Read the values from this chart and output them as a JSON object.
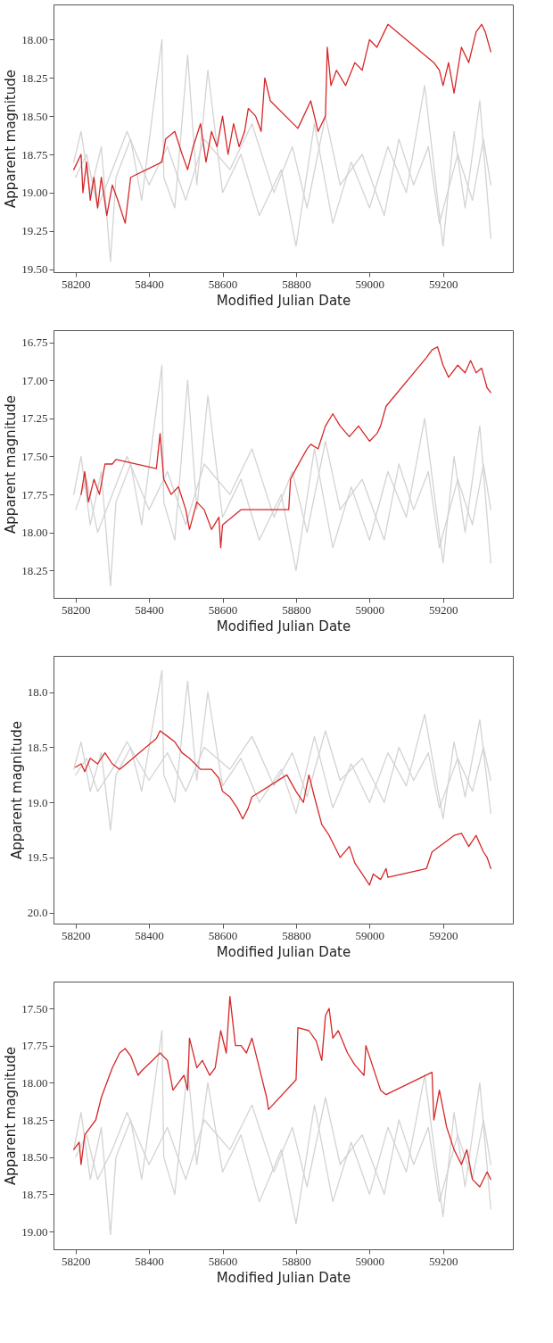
{
  "chart_data": [
    {
      "type": "line",
      "xlabel": "Modified Julian Date",
      "ylabel": "Apparent magnitude",
      "xlim": [
        58140,
        59390
      ],
      "ylim": [
        19.52,
        17.77
      ],
      "xticks": [
        58200,
        58400,
        58600,
        58800,
        59000,
        59200
      ],
      "yticks": [
        {
          "value": 18,
          "label": "18.00"
        },
        18.25,
        {
          "value": 18.5,
          "label": "18.50"
        },
        18.75,
        {
          "value": 19,
          "label": "19.00"
        },
        19.25,
        {
          "value": 19.5,
          "label": "19.50"
        }
      ],
      "grid": false,
      "legend": false,
      "series": [
        {
          "color": "#d3d3d3",
          "x": [
            58195,
            58215,
            58240,
            58270,
            58295,
            58310,
            58350,
            58380,
            58435,
            58440,
            58470,
            58505,
            58530,
            58560,
            58600,
            58650,
            58700,
            58760,
            58800,
            58850,
            58900,
            58950,
            59000,
            59050,
            59100,
            59150,
            59200,
            59230,
            59260,
            59300,
            59330
          ],
          "values": [
            18.8,
            18.6,
            19.0,
            18.7,
            19.45,
            18.9,
            18.65,
            19.05,
            18.0,
            18.9,
            19.1,
            18.1,
            18.95,
            18.2,
            19.0,
            18.75,
            19.15,
            18.85,
            19.35,
            18.55,
            19.2,
            18.8,
            19.1,
            18.7,
            19.0,
            18.3,
            19.35,
            18.6,
            19.1,
            18.4,
            19.3
          ]
        },
        {
          "color": "#d3d3d3",
          "x": [
            58200,
            58230,
            58260,
            58300,
            58340,
            58400,
            58450,
            58500,
            58550,
            58620,
            58680,
            58740,
            58790,
            58830,
            58880,
            58920,
            58980,
            59040,
            59080,
            59120,
            59160,
            59190,
            59240,
            59280,
            59310,
            59330
          ],
          "values": [
            18.9,
            18.75,
            19.1,
            18.85,
            18.6,
            18.95,
            18.7,
            19.05,
            18.65,
            18.85,
            18.55,
            19.0,
            18.7,
            19.1,
            18.5,
            18.95,
            18.75,
            19.15,
            18.65,
            18.95,
            18.7,
            19.2,
            18.75,
            19.05,
            18.65,
            18.95
          ]
        },
        {
          "color": "#d62728",
          "x": [
            58195,
            58215,
            58220,
            58230,
            58240,
            58250,
            58260,
            58270,
            58285,
            58300,
            58315,
            58335,
            58350,
            58435,
            58445,
            58470,
            58490,
            58505,
            58520,
            58540,
            58555,
            58570,
            58585,
            58600,
            58615,
            58630,
            58645,
            58660,
            58670,
            58690,
            58705,
            58715,
            58730,
            58805,
            58840,
            58860,
            58880,
            58885,
            58895,
            58910,
            58935,
            58960,
            58980,
            59000,
            59020,
            59040,
            59050,
            59175,
            59190,
            59200,
            59215,
            59230,
            59250,
            59270,
            59290,
            59305,
            59315,
            59330
          ],
          "values": [
            18.85,
            18.75,
            19.0,
            18.8,
            19.05,
            18.9,
            19.1,
            18.9,
            19.15,
            18.95,
            19.05,
            19.2,
            18.9,
            18.8,
            18.65,
            18.6,
            18.75,
            18.85,
            18.7,
            18.55,
            18.8,
            18.6,
            18.7,
            18.5,
            18.75,
            18.55,
            18.7,
            18.6,
            18.45,
            18.5,
            18.6,
            18.25,
            18.4,
            18.58,
            18.4,
            18.6,
            18.5,
            18.05,
            18.3,
            18.2,
            18.3,
            18.15,
            18.2,
            18.0,
            18.05,
            17.95,
            17.9,
            18.15,
            18.2,
            18.3,
            18.15,
            18.35,
            18.05,
            18.15,
            17.95,
            17.9,
            17.95,
            18.08
          ]
        }
      ]
    },
    {
      "type": "line",
      "xlabel": "Modified Julian Date",
      "ylabel": "Apparent magnitude",
      "xlim": [
        58140,
        59390
      ],
      "ylim": [
        18.43,
        16.67
      ],
      "xticks": [
        58200,
        58400,
        58600,
        58800,
        59000,
        59200
      ],
      "yticks": [
        16.75,
        {
          "value": 17,
          "label": "17.00"
        },
        17.25,
        {
          "value": 17.5,
          "label": "17.50"
        },
        17.75,
        {
          "value": 18,
          "label": "18.00"
        },
        18.25
      ],
      "grid": false,
      "legend": false,
      "series": [
        {
          "color": "#d3d3d3",
          "x": [
            58195,
            58215,
            58240,
            58270,
            58295,
            58310,
            58350,
            58380,
            58435,
            58440,
            58470,
            58505,
            58530,
            58560,
            58600,
            58650,
            58700,
            58760,
            58800,
            58850,
            58900,
            58950,
            59000,
            59050,
            59100,
            59150,
            59200,
            59230,
            59260,
            59300,
            59330
          ],
          "values": [
            17.75,
            17.5,
            17.95,
            17.6,
            18.35,
            17.8,
            17.55,
            17.95,
            16.9,
            17.8,
            18.05,
            17.0,
            17.85,
            17.1,
            17.9,
            17.65,
            18.05,
            17.75,
            18.25,
            17.45,
            18.1,
            17.7,
            18.05,
            17.6,
            17.9,
            17.25,
            18.2,
            17.5,
            18.0,
            17.3,
            18.2
          ]
        },
        {
          "color": "#d3d3d3",
          "x": [
            58200,
            58230,
            58260,
            58300,
            58340,
            58400,
            58450,
            58500,
            58550,
            58620,
            58680,
            58740,
            58790,
            58830,
            58880,
            58920,
            58980,
            59040,
            59080,
            59120,
            59160,
            59190,
            59240,
            59280,
            59310,
            59330
          ],
          "values": [
            17.85,
            17.65,
            18.0,
            17.75,
            17.5,
            17.85,
            17.6,
            17.95,
            17.55,
            17.75,
            17.45,
            17.9,
            17.6,
            18.0,
            17.4,
            17.85,
            17.65,
            18.05,
            17.55,
            17.85,
            17.6,
            18.1,
            17.65,
            17.95,
            17.55,
            17.85
          ]
        },
        {
          "color": "#d62728",
          "x": [
            58215,
            58225,
            58235,
            58250,
            58265,
            58280,
            58300,
            58310,
            58420,
            58430,
            58440,
            58460,
            58480,
            58500,
            58510,
            58530,
            58550,
            58570,
            58590,
            58595,
            58600,
            58625,
            58650,
            58780,
            58785,
            58800,
            58830,
            58840,
            58860,
            58880,
            58900,
            58920,
            58945,
            58970,
            59000,
            59020,
            59030,
            59045,
            59155,
            59170,
            59185,
            59200,
            59215,
            59240,
            59260,
            59275,
            59290,
            59305,
            59320,
            59330
          ],
          "values": [
            17.75,
            17.6,
            17.8,
            17.65,
            17.75,
            17.55,
            17.55,
            17.52,
            17.58,
            17.35,
            17.65,
            17.75,
            17.7,
            17.85,
            17.98,
            17.8,
            17.85,
            17.98,
            17.9,
            18.1,
            17.95,
            17.9,
            17.85,
            17.85,
            17.65,
            17.58,
            17.45,
            17.42,
            17.45,
            17.3,
            17.22,
            17.3,
            17.37,
            17.3,
            17.4,
            17.35,
            17.3,
            17.17,
            16.85,
            16.8,
            16.78,
            16.9,
            16.98,
            16.9,
            16.95,
            16.87,
            16.95,
            16.92,
            17.05,
            17.08
          ]
        }
      ]
    },
    {
      "type": "line",
      "xlabel": "Modified Julian Date",
      "ylabel": "Apparent magnitude",
      "xlim": [
        58140,
        59390
      ],
      "ylim": [
        20.1,
        17.67
      ],
      "xticks": [
        58200,
        58400,
        58600,
        58800,
        59000,
        59200
      ],
      "yticks": [
        {
          "value": 18,
          "label": "18.0"
        },
        18.5,
        {
          "value": 19,
          "label": "19.0"
        },
        19.5,
        {
          "value": 20,
          "label": "20.0"
        }
      ],
      "grid": false,
      "legend": false,
      "series": [
        {
          "color": "#d3d3d3",
          "x": [
            58195,
            58215,
            58240,
            58270,
            58295,
            58310,
            58350,
            58380,
            58435,
            58440,
            58470,
            58505,
            58530,
            58560,
            58600,
            58650,
            58700,
            58760,
            58800,
            58850,
            58900,
            58950,
            59000,
            59050,
            59100,
            59150,
            59200,
            59230,
            59260,
            59300,
            59330
          ],
          "values": [
            18.7,
            18.45,
            18.9,
            18.55,
            19.25,
            18.75,
            18.5,
            18.9,
            17.8,
            18.75,
            19.0,
            17.9,
            18.8,
            18.0,
            18.85,
            18.6,
            19.0,
            18.7,
            19.1,
            18.4,
            19.05,
            18.65,
            19.0,
            18.55,
            18.85,
            18.2,
            19.15,
            18.45,
            18.95,
            18.25,
            19.1
          ]
        },
        {
          "color": "#d3d3d3",
          "x": [
            58200,
            58230,
            58260,
            58300,
            58340,
            58400,
            58450,
            58500,
            58550,
            58620,
            58680,
            58740,
            58790,
            58830,
            58880,
            58920,
            58980,
            59040,
            59080,
            59120,
            59160,
            59190,
            59240,
            59280,
            59310,
            59330
          ],
          "values": [
            18.75,
            18.6,
            18.9,
            18.7,
            18.45,
            18.8,
            18.55,
            18.9,
            18.5,
            18.7,
            18.4,
            18.85,
            18.55,
            18.95,
            18.35,
            18.8,
            18.6,
            19.0,
            18.5,
            18.8,
            18.55,
            19.05,
            18.6,
            18.9,
            18.5,
            18.8
          ]
        },
        {
          "color": "#d62728",
          "x": [
            58200,
            58215,
            58225,
            58240,
            58260,
            58280,
            58300,
            58320,
            58420,
            58430,
            58450,
            58470,
            58490,
            58510,
            58540,
            58570,
            58590,
            58600,
            58620,
            58640,
            58655,
            58670,
            58680,
            58775,
            58800,
            58820,
            58835,
            58850,
            58870,
            58890,
            58905,
            58920,
            58945,
            58960,
            58980,
            59000,
            59010,
            59030,
            59045,
            59050,
            59155,
            59170,
            59190,
            59210,
            59230,
            59250,
            59270,
            59290,
            59310,
            59320,
            59330
          ],
          "values": [
            18.68,
            18.65,
            18.72,
            18.6,
            18.65,
            18.55,
            18.65,
            18.7,
            18.42,
            18.35,
            18.4,
            18.45,
            18.55,
            18.6,
            18.7,
            18.7,
            18.78,
            18.9,
            18.95,
            19.05,
            19.15,
            19.05,
            18.95,
            18.75,
            18.9,
            19.0,
            18.75,
            18.95,
            19.2,
            19.3,
            19.4,
            19.5,
            19.4,
            19.55,
            19.65,
            19.75,
            19.65,
            19.7,
            19.6,
            19.68,
            19.6,
            19.45,
            19.4,
            19.35,
            19.3,
            19.28,
            19.4,
            19.3,
            19.45,
            19.5,
            19.6
          ]
        }
      ]
    },
    {
      "type": "line",
      "xlabel": "Modified Julian Date",
      "ylabel": "Apparent magnitude",
      "xlim": [
        58140,
        59390
      ],
      "ylim": [
        19.12,
        17.32
      ],
      "xticks": [
        58200,
        58400,
        58600,
        58800,
        59000,
        59200
      ],
      "yticks": [
        {
          "value": 17.5,
          "label": "17.50"
        },
        17.75,
        {
          "value": 18,
          "label": "18.00"
        },
        18.25,
        {
          "value": 18.5,
          "label": "18.50"
        },
        18.75,
        {
          "value": 19,
          "label": "19.00"
        }
      ],
      "grid": false,
      "legend": false,
      "series": [
        {
          "color": "#d3d3d3",
          "x": [
            58195,
            58215,
            58240,
            58270,
            58295,
            58310,
            58350,
            58380,
            58435,
            58440,
            58470,
            58505,
            58530,
            58560,
            58600,
            58650,
            58700,
            58760,
            58800,
            58850,
            58900,
            58950,
            59000,
            59050,
            59100,
            59150,
            59200,
            59230,
            59260,
            59300,
            59330
          ],
          "values": [
            18.45,
            18.2,
            18.65,
            18.3,
            19.02,
            18.5,
            18.25,
            18.65,
            17.65,
            18.5,
            18.75,
            17.9,
            18.55,
            18.0,
            18.6,
            18.35,
            18.8,
            18.45,
            18.95,
            18.15,
            18.8,
            18.4,
            18.75,
            18.3,
            18.6,
            17.95,
            18.9,
            18.2,
            18.7,
            18.0,
            18.85
          ]
        },
        {
          "color": "#d3d3d3",
          "x": [
            58200,
            58230,
            58260,
            58300,
            58340,
            58400,
            58450,
            58500,
            58550,
            58620,
            58680,
            58740,
            58790,
            58830,
            58880,
            58920,
            58980,
            59040,
            59080,
            59120,
            59160,
            59190,
            59240,
            59280,
            59310,
            59330
          ],
          "values": [
            18.5,
            18.35,
            18.65,
            18.45,
            18.2,
            18.55,
            18.3,
            18.65,
            18.25,
            18.45,
            18.15,
            18.6,
            18.3,
            18.7,
            18.1,
            18.55,
            18.35,
            18.75,
            18.25,
            18.55,
            18.3,
            18.8,
            18.35,
            18.65,
            18.25,
            18.55
          ]
        },
        {
          "color": "#d62728",
          "x": [
            58195,
            58210,
            58215,
            58225,
            58240,
            58255,
            58270,
            58285,
            58300,
            58320,
            58335,
            58350,
            58370,
            58380,
            58430,
            58450,
            58465,
            58480,
            58495,
            58505,
            58510,
            58530,
            58545,
            58565,
            58580,
            58595,
            58610,
            58620,
            58635,
            58650,
            58665,
            58680,
            58700,
            58720,
            58725,
            58800,
            58805,
            58835,
            58855,
            58870,
            58880,
            58890,
            58900,
            58915,
            58940,
            58960,
            58985,
            58990,
            59010,
            59030,
            59045,
            59170,
            59175,
            59190,
            59210,
            59230,
            59250,
            59265,
            59280,
            59300,
            59320,
            59330
          ],
          "values": [
            18.45,
            18.4,
            18.55,
            18.35,
            18.3,
            18.25,
            18.1,
            18.0,
            17.9,
            17.8,
            17.77,
            17.82,
            17.95,
            17.92,
            17.8,
            17.85,
            18.05,
            18.0,
            17.95,
            18.05,
            17.7,
            17.9,
            17.85,
            17.95,
            17.9,
            17.65,
            17.8,
            17.42,
            17.75,
            17.75,
            17.8,
            17.7,
            17.9,
            18.1,
            18.18,
            17.98,
            17.63,
            17.65,
            17.72,
            17.85,
            17.55,
            17.5,
            17.7,
            17.65,
            17.8,
            17.88,
            17.95,
            17.75,
            17.9,
            18.05,
            18.08,
            17.93,
            18.25,
            18.05,
            18.3,
            18.45,
            18.55,
            18.45,
            18.65,
            18.7,
            18.6,
            18.65
          ]
        }
      ]
    }
  ]
}
